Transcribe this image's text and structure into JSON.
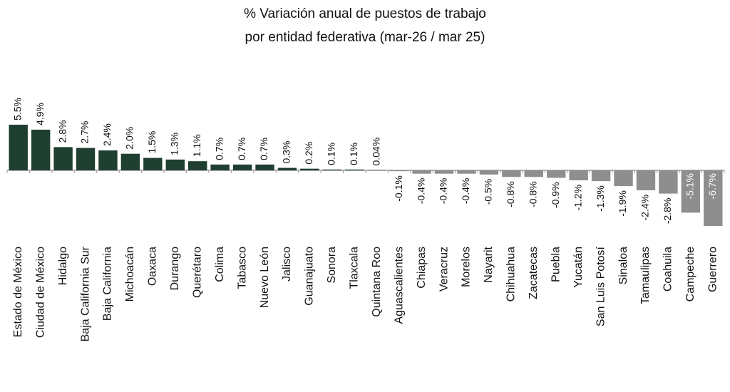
{
  "chart_data": {
    "type": "bar",
    "title": "% Variación anual de puestos de trabajo",
    "subtitle": "por entidad federativa (mar-26 / mar 25)",
    "categories": [
      "Estado de México",
      "Ciudad de México",
      "Hidalgo",
      "Baja California Sur",
      "Baja California",
      "Michoacán",
      "Oaxaca",
      "Durango",
      "Querétaro",
      "Colima",
      "Tabasco",
      "Nuevo León",
      "Jalisco",
      "Guanajuato",
      "Sonora",
      "Tlaxcala",
      "Quintana Roo",
      "Aguascalientes",
      "Chiapas",
      "Veracruz",
      "Morelos",
      "Nayarit",
      "Chihuahua",
      "Zacatecas",
      "Puebla",
      "Yucatán",
      "San Luis Potosí",
      "Sinaloa",
      "Tamaulipas",
      "Coahuila",
      "Campeche",
      "Guerrero"
    ],
    "values": [
      5.5,
      4.9,
      2.8,
      2.7,
      2.4,
      2.0,
      1.5,
      1.3,
      1.1,
      0.7,
      0.7,
      0.7,
      0.3,
      0.2,
      0.1,
      0.1,
      0.04,
      -0.1,
      -0.4,
      -0.4,
      -0.4,
      -0.5,
      -0.8,
      -0.8,
      -0.9,
      -1.2,
      -1.3,
      -1.9,
      -2.4,
      -2.8,
      -5.1,
      -6.7
    ],
    "value_labels": [
      "5.5%",
      "4.9%",
      "2.8%",
      "2.7%",
      "2.4%",
      "2.0%",
      "1.5%",
      "1.3%",
      "1.1%",
      "0.7%",
      "0.7%",
      "0.7%",
      "0.3%",
      "0.2%",
      "0.1%",
      "0.1%",
      "0.04%",
      "-0.1%",
      "-0.4%",
      "-0.4%",
      "-0.4%",
      "-0.5%",
      "-0.8%",
      "-0.8%",
      "-0.9%",
      "-1.2%",
      "-1.3%",
      "-1.9%",
      "-2.4%",
      "-2.8%",
      "-5.1%",
      "-6.7%"
    ],
    "color": "#1f3f30",
    "negative_color": "#8e8e8e"
  }
}
